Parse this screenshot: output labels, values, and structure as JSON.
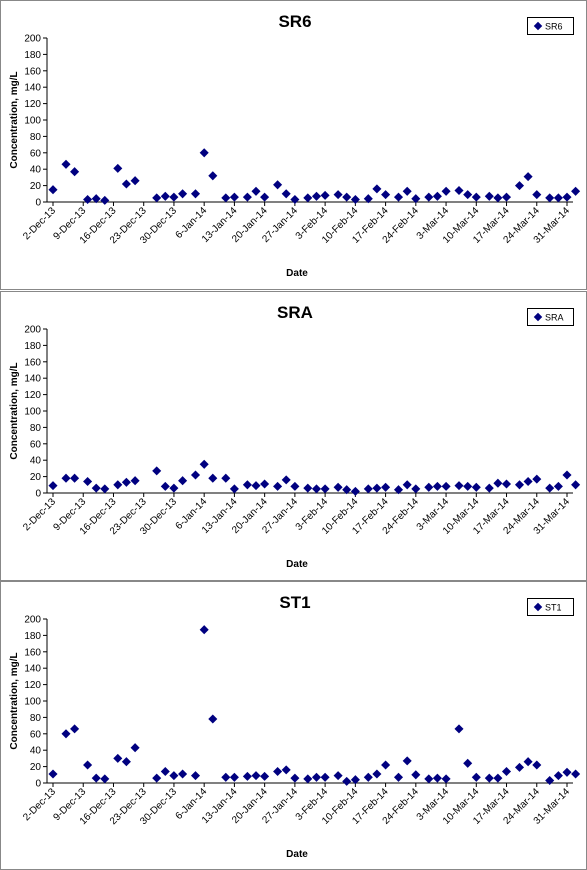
{
  "chart_data": [
    {
      "type": "scatter",
      "title": "SR6",
      "xlabel": "Date",
      "ylabel": "Concentration, mg/L",
      "ylim": [
        0,
        200
      ],
      "yticks": [
        "0",
        "20",
        "40",
        "60",
        "80",
        "100",
        "120",
        "140",
        "160",
        "180",
        "200"
      ],
      "xlim": [
        "2013-12-02",
        "2014-03-31"
      ],
      "xticks": [
        "2-Dec-13",
        "9-Dec-13",
        "16-Dec-13",
        "23-Dec-13",
        "30-Dec-13",
        "6-Jan-14",
        "13-Jan-14",
        "20-Jan-14",
        "27-Jan-14",
        "3-Feb-14",
        "10-Feb-14",
        "17-Feb-14",
        "24-Feb-14",
        "3-Mar-14",
        "10-Mar-14",
        "17-Mar-14",
        "24-Mar-14",
        "31-Mar-14"
      ],
      "grid": false,
      "legend": "top-right",
      "color": "#000080",
      "series": [
        {
          "name": "SR6",
          "x": [
            "2013-12-02",
            "2013-12-05",
            "2013-12-07",
            "2013-12-10",
            "2013-12-12",
            "2013-12-14",
            "2013-12-17",
            "2013-12-19",
            "2013-12-21",
            "2013-12-26",
            "2013-12-28",
            "2013-12-30",
            "2014-01-01",
            "2014-01-04",
            "2014-01-06",
            "2014-01-08",
            "2014-01-11",
            "2014-01-13",
            "2014-01-16",
            "2014-01-18",
            "2014-01-20",
            "2014-01-23",
            "2014-01-25",
            "2014-01-27",
            "2014-01-30",
            "2014-02-01",
            "2014-02-03",
            "2014-02-06",
            "2014-02-08",
            "2014-02-10",
            "2014-02-13",
            "2014-02-15",
            "2014-02-17",
            "2014-02-20",
            "2014-02-22",
            "2014-02-24",
            "2014-02-27",
            "2014-03-01",
            "2014-03-03",
            "2014-03-06",
            "2014-03-08",
            "2014-03-10",
            "2014-03-13",
            "2014-03-15",
            "2014-03-17",
            "2014-03-20",
            "2014-03-22",
            "2014-03-24",
            "2014-03-27",
            "2014-03-29",
            "2014-03-31",
            "2014-04-02"
          ],
          "y": [
            15,
            46,
            37,
            3,
            4,
            2,
            41,
            22,
            26,
            5,
            7,
            6,
            10,
            10,
            60,
            32,
            5,
            6,
            6,
            13,
            6,
            21,
            10,
            3,
            5,
            7,
            8,
            9,
            6,
            3,
            4,
            16,
            9,
            6,
            13,
            4,
            6,
            7,
            13,
            14,
            9,
            6,
            7,
            5,
            6,
            20,
            31,
            9,
            5,
            5,
            6,
            13
          ]
        }
      ]
    },
    {
      "type": "scatter",
      "title": "SRA",
      "xlabel": "Date",
      "ylabel": "Concentration, mg/L",
      "ylim": [
        0,
        200
      ],
      "yticks": [
        "0",
        "20",
        "40",
        "60",
        "80",
        "100",
        "120",
        "140",
        "160",
        "180",
        "200"
      ],
      "xlim": [
        "2013-12-02",
        "2014-03-31"
      ],
      "xticks": [
        "2-Dec-13",
        "9-Dec-13",
        "16-Dec-13",
        "23-Dec-13",
        "30-Dec-13",
        "6-Jan-14",
        "13-Jan-14",
        "20-Jan-14",
        "27-Jan-14",
        "3-Feb-14",
        "10-Feb-14",
        "17-Feb-14",
        "24-Feb-14",
        "3-Mar-14",
        "10-Mar-14",
        "17-Mar-14",
        "24-Mar-14",
        "31-Mar-14"
      ],
      "grid": false,
      "legend": "top-right",
      "color": "#000080",
      "series": [
        {
          "name": "SRA",
          "x": [
            "2013-12-02",
            "2013-12-05",
            "2013-12-07",
            "2013-12-10",
            "2013-12-12",
            "2013-12-14",
            "2013-12-17",
            "2013-12-19",
            "2013-12-21",
            "2013-12-26",
            "2013-12-28",
            "2013-12-30",
            "2014-01-01",
            "2014-01-04",
            "2014-01-06",
            "2014-01-08",
            "2014-01-11",
            "2014-01-13",
            "2014-01-16",
            "2014-01-18",
            "2014-01-20",
            "2014-01-23",
            "2014-01-25",
            "2014-01-27",
            "2014-01-30",
            "2014-02-01",
            "2014-02-03",
            "2014-02-06",
            "2014-02-08",
            "2014-02-10",
            "2014-02-13",
            "2014-02-15",
            "2014-02-17",
            "2014-02-20",
            "2014-02-22",
            "2014-02-24",
            "2014-02-27",
            "2014-03-01",
            "2014-03-03",
            "2014-03-06",
            "2014-03-08",
            "2014-03-10",
            "2014-03-13",
            "2014-03-15",
            "2014-03-17",
            "2014-03-20",
            "2014-03-22",
            "2014-03-24",
            "2014-03-27",
            "2014-03-29",
            "2014-03-31",
            "2014-04-02"
          ],
          "y": [
            9,
            18,
            18,
            14,
            6,
            5,
            10,
            13,
            15,
            27,
            8,
            6,
            15,
            22,
            35,
            18,
            18,
            5,
            10,
            9,
            11,
            8,
            16,
            8,
            6,
            5,
            5,
            7,
            4,
            2,
            5,
            6,
            7,
            4,
            10,
            5,
            7,
            8,
            8,
            9,
            8,
            7,
            6,
            12,
            11,
            10,
            14,
            17,
            6,
            8,
            22,
            10
          ]
        }
      ]
    },
    {
      "type": "scatter",
      "title": "ST1",
      "xlabel": "Date",
      "ylabel": "Concentration, mg/L",
      "ylim": [
        0,
        200
      ],
      "yticks": [
        "0",
        "20",
        "40",
        "60",
        "80",
        "100",
        "120",
        "140",
        "160",
        "180",
        "200"
      ],
      "xlim": [
        "2013-12-02",
        "2014-03-31"
      ],
      "xticks": [
        "2-Dec-13",
        "9-Dec-13",
        "16-Dec-13",
        "23-Dec-13",
        "30-Dec-13",
        "6-Jan-14",
        "13-Jan-14",
        "20-Jan-14",
        "27-Jan-14",
        "3-Feb-14",
        "10-Feb-14",
        "17-Feb-14",
        "24-Feb-14",
        "3-Mar-14",
        "10-Mar-14",
        "17-Mar-14",
        "24-Mar-14",
        "31-Mar-14"
      ],
      "grid": false,
      "legend": "top-right",
      "color": "#000080",
      "series": [
        {
          "name": "ST1",
          "x": [
            "2013-12-02",
            "2013-12-05",
            "2013-12-07",
            "2013-12-10",
            "2013-12-12",
            "2013-12-14",
            "2013-12-17",
            "2013-12-19",
            "2013-12-21",
            "2013-12-26",
            "2013-12-28",
            "2013-12-30",
            "2014-01-01",
            "2014-01-04",
            "2014-01-06",
            "2014-01-08",
            "2014-01-11",
            "2014-01-13",
            "2014-01-16",
            "2014-01-18",
            "2014-01-20",
            "2014-01-23",
            "2014-01-25",
            "2014-01-27",
            "2014-01-30",
            "2014-02-01",
            "2014-02-03",
            "2014-02-06",
            "2014-02-08",
            "2014-02-10",
            "2014-02-13",
            "2014-02-15",
            "2014-02-17",
            "2014-02-20",
            "2014-02-22",
            "2014-02-24",
            "2014-02-27",
            "2014-03-01",
            "2014-03-03",
            "2014-03-06",
            "2014-03-08",
            "2014-03-10",
            "2014-03-13",
            "2014-03-15",
            "2014-03-17",
            "2014-03-20",
            "2014-03-22",
            "2014-03-24",
            "2014-03-27",
            "2014-03-29",
            "2014-03-31",
            "2014-04-02"
          ],
          "y": [
            11,
            60,
            66,
            22,
            6,
            5,
            30,
            26,
            43,
            6,
            14,
            9,
            11,
            9,
            187,
            78,
            7,
            7,
            8,
            9,
            8,
            14,
            16,
            6,
            5,
            7,
            7,
            9,
            2,
            4,
            7,
            11,
            22,
            7,
            27,
            10,
            5,
            6,
            5,
            66,
            24,
            7,
            6,
            6,
            14,
            19,
            26,
            22,
            3,
            9,
            13,
            11
          ]
        }
      ]
    }
  ]
}
